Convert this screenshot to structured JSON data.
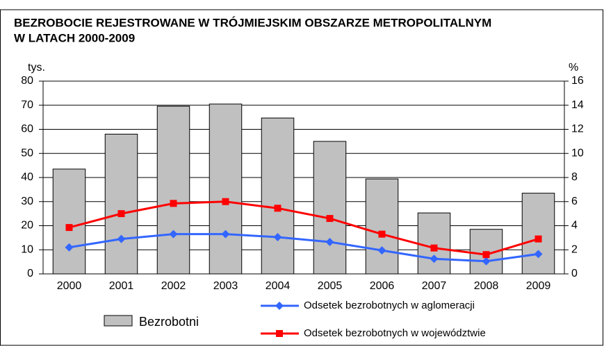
{
  "chart_data": {
    "type": "bar_line",
    "title": [
      "BEZROBOCIE REJESTROWANE W TRÓJMIEJSKIM OBSZARZE METROPOLITALNYM",
      "W LATACH 2000-2009"
    ],
    "y_label": "tys.",
    "y2_label": "%",
    "categories": [
      "2000",
      "2001",
      "2002",
      "2003",
      "2004",
      "2005",
      "2006",
      "2007",
      "2008",
      "2009"
    ],
    "series": [
      {
        "name": "Bezrobotni",
        "type": "bar",
        "color": "#c0c0c0",
        "values": [
          43.5,
          58,
          69.6,
          70.5,
          64.7,
          55,
          39.4,
          25.3,
          18.5,
          33.5
        ]
      },
      {
        "name": "Odsetek bezrobotnych w aglomeracji",
        "type": "line",
        "axis": "y2",
        "color": "#3366ff",
        "values": [
          2.2,
          2.9,
          3.3,
          3.3,
          3.05,
          2.65,
          1.95,
          1.25,
          1.05,
          1.65
        ]
      },
      {
        "name": "Odsetek bezrobotnych w województwie",
        "type": "line",
        "axis": "y2",
        "color": "#ff0000",
        "values": [
          3.85,
          5.0,
          5.85,
          6.0,
          5.45,
          4.6,
          3.3,
          2.15,
          1.6,
          2.9
        ]
      }
    ],
    "ylim": [
      0,
      80
    ],
    "yticks": [
      0,
      10,
      20,
      30,
      40,
      50,
      60,
      70,
      80
    ],
    "y2lim": [
      0,
      16
    ],
    "y2ticks": [
      0,
      2,
      4,
      6,
      8,
      10,
      12,
      14,
      16
    ],
    "grid": true
  }
}
